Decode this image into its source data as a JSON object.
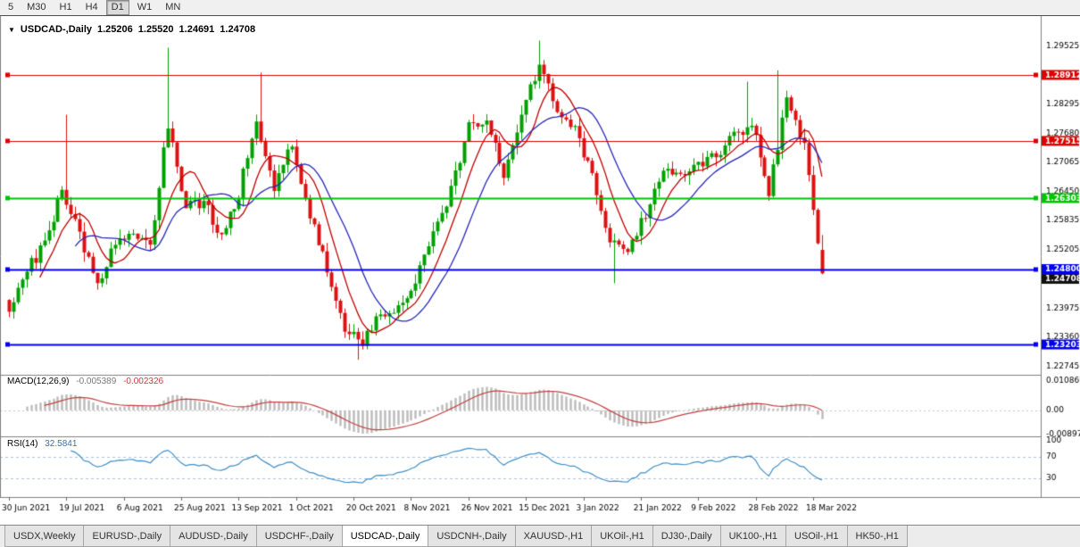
{
  "header": {
    "collapse_icon": "▼",
    "symbol": "USDCAD-,Daily",
    "open": "1.25206",
    "high": "1.25520",
    "low": "1.24691",
    "close": "1.24708"
  },
  "toolbar": {
    "timeframes": [
      {
        "label": "5",
        "active": false
      },
      {
        "label": "M30",
        "active": false
      },
      {
        "label": "H1",
        "active": false
      },
      {
        "label": "H4",
        "active": false
      },
      {
        "label": "D1",
        "active": true
      },
      {
        "label": "W1",
        "active": false
      },
      {
        "label": "MN",
        "active": false
      }
    ]
  },
  "tabs": [
    {
      "label": "USDX,Weekly",
      "active": false
    },
    {
      "label": "EURUSD-,Daily",
      "active": false
    },
    {
      "label": "AUDUSD-,Daily",
      "active": false
    },
    {
      "label": "USDCHF-,Daily",
      "active": false
    },
    {
      "label": "USDCAD-,Daily",
      "active": true
    },
    {
      "label": "USDCNH-,Daily",
      "active": false
    },
    {
      "label": "XAUUSD-,H1",
      "active": false
    },
    {
      "label": "UKOil-,H1",
      "active": false
    },
    {
      "label": "DJ30-,Daily",
      "active": false
    },
    {
      "label": "UK100-,H1",
      "active": false
    },
    {
      "label": "USOil-,H1",
      "active": false
    },
    {
      "label": "HK50-,H1",
      "active": false
    }
  ],
  "chart_data": {
    "type": "candlestick",
    "title": "USDCAD-,Daily",
    "symbol": "USDCAD-",
    "timeframe": "Daily",
    "last_candle": {
      "o": 1.25206,
      "h": 1.2552,
      "l": 1.24691,
      "c": 1.24708
    },
    "y_axis": {
      "range": [
        1.2275,
        1.2997
      ],
      "ticks": [
        1.29525,
        1.28295,
        1.2768,
        1.27065,
        1.2645,
        1.25835,
        1.25205,
        1.23975,
        1.2336,
        1.22745
      ]
    },
    "x_axis": {
      "labels": [
        "30 Jun 2021",
        "19 Jul 2021",
        "6 Aug 2021",
        "25 Aug 2021",
        "13 Sep 2021",
        "1 Oct 2021",
        "20 Oct 2021",
        "8 Nov 2021",
        "26 Nov 2021",
        "15 Dec 2021",
        "3 Jan 2022",
        "21 Jan 2022",
        "9 Feb 2022",
        "28 Feb 2022",
        "18 Mar 2022"
      ],
      "bars_per_label": 13
    },
    "bars_per_anchor": 4,
    "close_anchors": [
      1.2395,
      1.248,
      1.253,
      1.265,
      1.255,
      1.2445,
      1.254,
      1.2565,
      1.253,
      1.279,
      1.261,
      1.2625,
      1.2545,
      1.264,
      1.28,
      1.265,
      1.2745,
      1.259,
      1.248,
      1.236,
      1.233,
      1.238,
      1.2395,
      1.245,
      1.2555,
      1.2645,
      1.278,
      1.2805,
      1.2665,
      1.2805,
      1.2915,
      1.2815,
      1.2775,
      1.268,
      1.2545,
      1.251,
      1.26,
      1.2695,
      1.268,
      1.27,
      1.2725,
      1.276,
      1.279,
      1.2635,
      1.2855,
      1.274,
      1.248
    ],
    "spikes": [
      {
        "bar": 13,
        "type": "high",
        "price": 1.2807
      },
      {
        "bar": 36,
        "type": "high",
        "price": 1.2949
      },
      {
        "bar": 57,
        "type": "high",
        "price": 1.2896
      },
      {
        "bar": 79,
        "type": "low",
        "price": 1.2288
      },
      {
        "bar": 120,
        "type": "high",
        "price": 1.2964
      },
      {
        "bar": 137,
        "type": "low",
        "price": 1.245
      },
      {
        "bar": 167,
        "type": "high",
        "price": 1.2877
      },
      {
        "bar": 174,
        "type": "high",
        "price": 1.2901
      }
    ],
    "hlines": [
      {
        "price": 1.28912,
        "color": "#dd0000",
        "width": 1
      },
      {
        "price": 1.27515,
        "color": "#dd0000",
        "width": 1
      },
      {
        "price": 1.26303,
        "color": "#00c400",
        "width": 2
      },
      {
        "price": 1.248,
        "color": "#0000ee",
        "width": 2
      },
      {
        "price": 1.23203,
        "color": "#0000ee",
        "width": 2
      }
    ],
    "current_price_tag": {
      "price": 1.24708,
      "color": "#111111"
    },
    "candle_colors": {
      "up": "#00a000",
      "down": "#dd1111"
    },
    "moving_averages": [
      {
        "period": 8,
        "color": "#c00000"
      },
      {
        "period": 16,
        "color": "#2626b8"
      }
    ],
    "indicators": {
      "macd": {
        "name": "MACD(12,26,9)",
        "value_main": "-0.005389",
        "value_signal": "-0.002326",
        "fast": 12,
        "slow": 26,
        "signal": 9,
        "axis_labels": [
          "0.010869",
          "0.00",
          "-0.008974"
        ],
        "axis_values": [
          0.010869,
          0,
          -0.008974
        ],
        "histogram_color": "#bbbbbb",
        "signal_color": "#c34040"
      },
      "rsi": {
        "name": "RSI(14)",
        "value": "32.5841",
        "period": 14,
        "levels": [
          70,
          30
        ],
        "axis_labels": [
          "100",
          "70",
          "30"
        ],
        "axis_values": [
          100,
          70,
          30
        ],
        "line_color": "#3f8fc4"
      }
    }
  }
}
